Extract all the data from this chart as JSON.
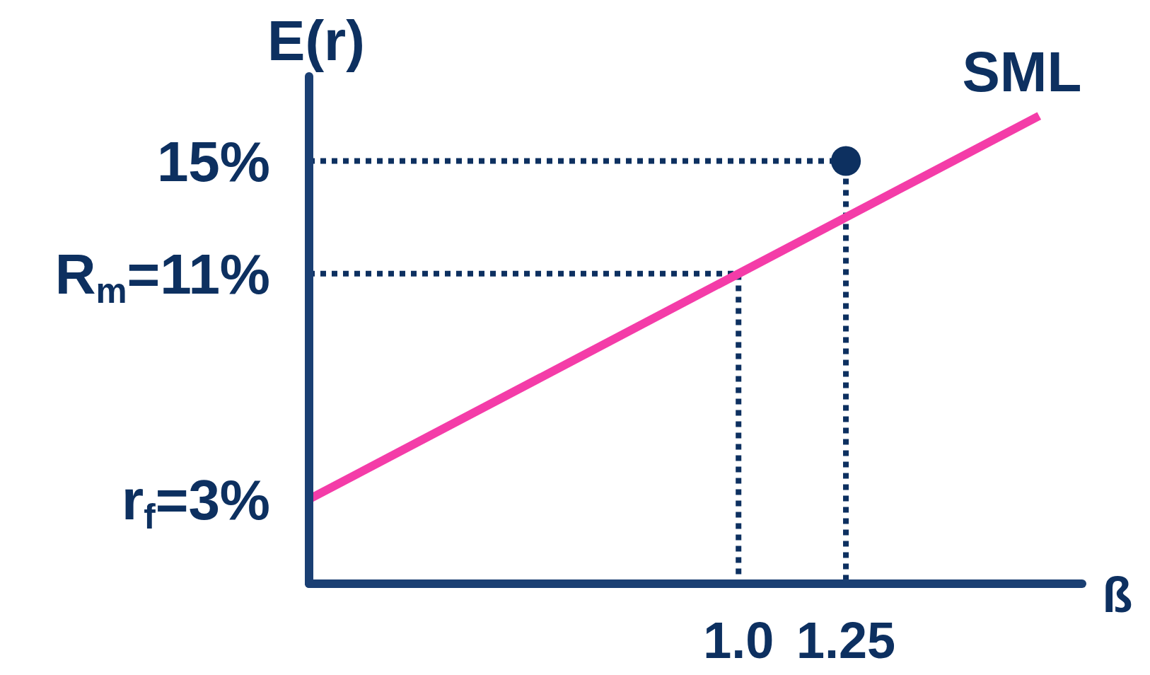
{
  "chart_data": {
    "type": "line",
    "xlabel": "ß",
    "ylabel": "E(r)",
    "xlim": [
      0,
      1.8
    ],
    "ylim": [
      0,
      18
    ],
    "xticks": [
      {
        "value": 1,
        "label": "1.0"
      },
      1.25
    ],
    "yticks": [
      {
        "value": 3,
        "label": "r$_{f}$=3%"
      },
      {
        "value": 11,
        "label": "R$_{m}$=11%"
      },
      {
        "value": 15,
        "label": "15%"
      }
    ],
    "series": [
      {
        "line_style": "dotted",
        "color": "#0d3060",
        "x": [
          0,
          1,
          1
        ],
        "values": [
          11,
          11,
          0
        ]
      },
      {
        "line_style": "dotted",
        "color": "#0d3060",
        "x": [
          0,
          1.25,
          1.25
        ],
        "values": [
          15,
          15,
          0
        ]
      },
      {
        "line_style": "solid",
        "name": "SML",
        "color": "#f43ca8",
        "x": [
          0,
          1.7
        ],
        "values": [
          3,
          16.6
        ]
      },
      {
        "type": "scatter",
        "marker": "circle",
        "color": "#0d3060",
        "x": [
          1.25
        ],
        "values": [
          15
        ]
      }
    ]
  }
}
